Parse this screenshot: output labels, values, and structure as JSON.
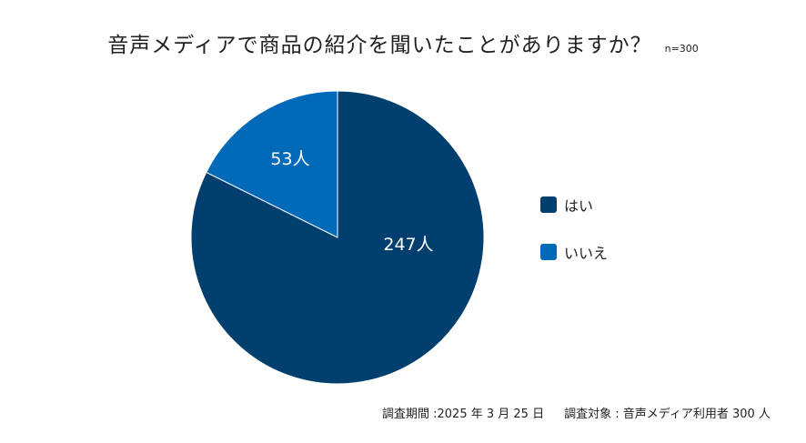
{
  "title": {
    "main": "音声メディアで商品の紹介を聞いたことがありますか？",
    "n_label": "n=300"
  },
  "legend": [
    {
      "label": "はい",
      "color": "#003f6e"
    },
    {
      "label": "いいえ",
      "color": "#0069b8"
    }
  ],
  "slices": [
    {
      "label": "247人",
      "value": 247,
      "color": "#003f6e"
    },
    {
      "label": "53人",
      "value": 53,
      "color": "#0069b8"
    }
  ],
  "footer": {
    "period": "調査期間 :2025 年 3 月 25 日",
    "target": "調査対象 : 音声メディア利用者 300 人"
  },
  "chart_data": {
    "type": "pie",
    "title": "音声メディアで商品の紹介を聞いたことがありますか？",
    "subtitle": "n=300",
    "categories": [
      "はい",
      "いいえ"
    ],
    "values": [
      247,
      53
    ],
    "unit": "人",
    "data_labels": [
      "247人",
      "53人"
    ],
    "colors": [
      "#003f6e",
      "#0069b8"
    ],
    "legend_position": "right",
    "annotations": [
      "調査期間 :2025 年 3 月 25 日",
      "調査対象 : 音声メディア利用者 300 人"
    ]
  }
}
